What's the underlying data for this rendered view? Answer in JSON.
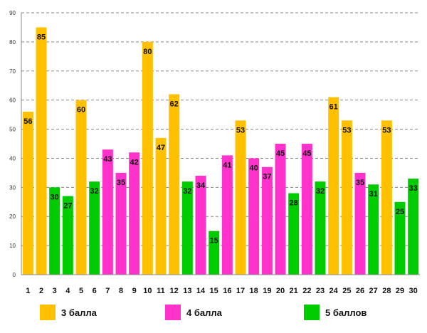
{
  "chart_data": {
    "type": "bar",
    "title": "",
    "xlabel": "",
    "ylabel": "",
    "ylim": [
      0,
      90
    ],
    "yticks": [
      0,
      10,
      20,
      30,
      40,
      50,
      60,
      70,
      80,
      90
    ],
    "grid": true,
    "categories": [
      "1",
      "2",
      "3",
      "4",
      "5",
      "6",
      "7",
      "8",
      "9",
      "10",
      "11",
      "12",
      "13",
      "14",
      "15",
      "16",
      "17",
      "18",
      "19",
      "20",
      "21",
      "22",
      "23",
      "24",
      "25",
      "26",
      "27",
      "28",
      "29",
      "30"
    ],
    "values": [
      56,
      85,
      30,
      27,
      60,
      32,
      43,
      35,
      42,
      80,
      47,
      62,
      32,
      34,
      15,
      41,
      53,
      40,
      37,
      45,
      28,
      45,
      32,
      61,
      53,
      35,
      31,
      53,
      25,
      33
    ],
    "groups": [
      "g3",
      "g3",
      "g5",
      "g5",
      "g3",
      "g5",
      "g4",
      "g4",
      "g4",
      "g3",
      "g3",
      "g3",
      "g5",
      "g4",
      "g5",
      "g4",
      "g3",
      "g4",
      "g4",
      "g4",
      "g5",
      "g4",
      "g5",
      "g3",
      "g3",
      "g4",
      "g5",
      "g3",
      "g5",
      "g5"
    ],
    "legend": [
      {
        "key": "g3",
        "label": "3 балла",
        "color": "#FFC000"
      },
      {
        "key": "g4",
        "label": "4 балла",
        "color": "#FF33CC"
      },
      {
        "key": "g5",
        "label": "5 баллов",
        "color": "#00CC00"
      }
    ]
  }
}
